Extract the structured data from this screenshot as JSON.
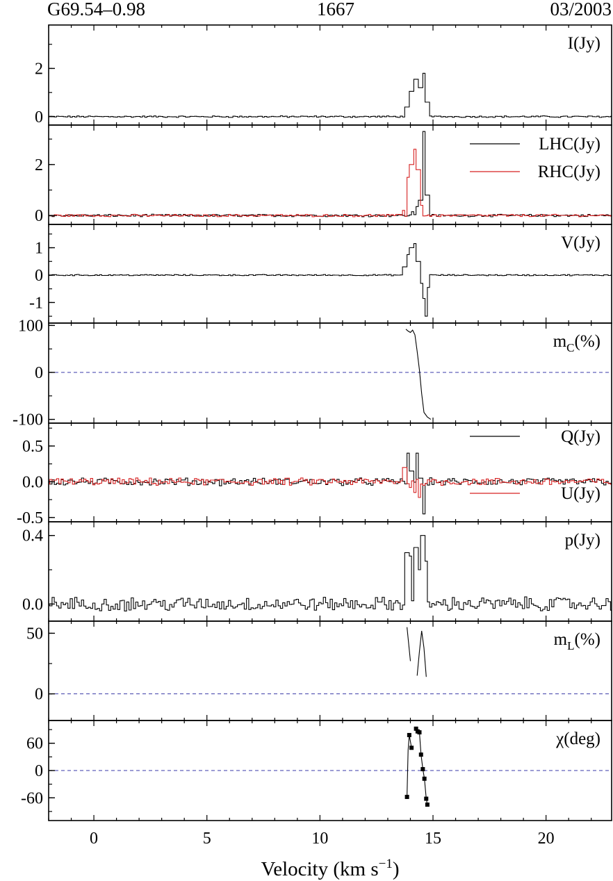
{
  "header": {
    "source": "G69.54–0.98",
    "frequency": "1667",
    "date": "03/2003"
  },
  "colors": {
    "primary_trace": "#000000",
    "secondary_trace": "#d62020",
    "zero_line": "#3a3aa8"
  },
  "chart_data": {
    "type": "line",
    "xlabel": "Velocity (km s",
    "xlabel_sup": "−1",
    "xlabel_close": ")",
    "xlim": [
      -2,
      22.9
    ],
    "xticks": [
      0,
      5,
      10,
      15,
      20
    ],
    "xtick_labels": [
      "0",
      "5",
      "10",
      "15",
      "20"
    ],
    "panels": [
      {
        "id": "I",
        "label": "I(Jy)",
        "ylim": [
          -0.35,
          3.8
        ],
        "yticks": [
          0,
          2
        ],
        "ytick_labels": [
          "0",
          "2"
        ],
        "noise": 0.03,
        "series": [
          {
            "name": "I(Jy)",
            "color": "#000000",
            "peaks": [
              [
                13.85,
                0.4
              ],
              [
                14.05,
                1.05
              ],
              [
                14.25,
                1.55
              ],
              [
                14.45,
                1.2
              ],
              [
                14.62,
                1.8
              ],
              [
                14.75,
                0.6
              ]
            ]
          }
        ]
      },
      {
        "id": "LR",
        "label": "",
        "ylim": [
          -0.35,
          3.55
        ],
        "yticks": [
          0,
          2
        ],
        "ytick_labels": [
          "0",
          "2"
        ],
        "noise": 0.04,
        "legend": [
          {
            "name": "LHC(Jy)",
            "color": "#000000"
          },
          {
            "name": "RHC(Jy)",
            "color": "#d62020"
          }
        ],
        "series": [
          {
            "name": "LHC(Jy)",
            "color": "#000000",
            "peaks": [
              [
                14.1,
                0.15
              ],
              [
                14.3,
                0.35
              ],
              [
                14.45,
                0.6
              ],
              [
                14.62,
                3.3
              ],
              [
                14.75,
                0.8
              ]
            ]
          },
          {
            "name": "RHC(Jy)",
            "color": "#d62020",
            "peaks": [
              [
                13.7,
                0.2
              ],
              [
                13.9,
                1.5
              ],
              [
                14.05,
                2.0
              ],
              [
                14.2,
                2.6
              ],
              [
                14.35,
                1.8
              ],
              [
                14.5,
                0.4
              ]
            ]
          }
        ]
      },
      {
        "id": "V",
        "label": "V(Jy)",
        "ylim": [
          -1.75,
          1.85
        ],
        "yticks": [
          -1,
          0,
          1
        ],
        "ytick_labels": [
          "-1",
          "0",
          "1"
        ],
        "noise": 0.02,
        "series": [
          {
            "name": "V(Jy)",
            "color": "#000000",
            "peaks": [
              [
                13.75,
                0.3
              ],
              [
                13.9,
                0.75
              ],
              [
                14.05,
                1.0
              ],
              [
                14.2,
                1.15
              ],
              [
                14.35,
                0.5
              ],
              [
                14.45,
                -0.3
              ],
              [
                14.55,
                -0.85
              ],
              [
                14.65,
                -1.5
              ],
              [
                14.78,
                -0.45
              ]
            ]
          }
        ]
      },
      {
        "id": "mc",
        "label": "m",
        "label_sub": "C",
        "label_tail": "(%)",
        "ylim": [
          -108,
          105
        ],
        "yticks": [
          -100,
          0,
          100
        ],
        "ytick_labels": [
          "-100",
          "0",
          "100"
        ],
        "zero_line": true,
        "curves": [
          {
            "color": "#000000",
            "points": [
              [
                13.8,
                92
              ],
              [
                13.9,
                88
              ],
              [
                14.0,
                85
              ],
              [
                14.1,
                90
              ],
              [
                14.2,
                80
              ],
              [
                14.3,
                45
              ],
              [
                14.4,
                5
              ],
              [
                14.5,
                -45
              ],
              [
                14.6,
                -85
              ],
              [
                14.75,
                -95
              ],
              [
                14.9,
                -100
              ]
            ]
          }
        ]
      },
      {
        "id": "QU",
        "label": "",
        "ylim": [
          -0.56,
          0.82
        ],
        "yticks": [
          -0.5,
          0.0,
          0.5
        ],
        "ytick_labels": [
          "-0.5",
          "0.0",
          "0.5"
        ],
        "noise": 0.045,
        "legend": [
          {
            "name": "Q(Jy)",
            "color": "#000000",
            "position": "top-right"
          },
          {
            "name": "U(Jy)",
            "color": "#d62020",
            "position": "bottom-right"
          }
        ],
        "series": [
          {
            "name": "Q(Jy)",
            "color": "#000000",
            "peaks": [
              [
                13.9,
                0.4
              ],
              [
                14.05,
                0.15
              ],
              [
                14.3,
                0.4
              ],
              [
                14.45,
                0.05
              ],
              [
                14.6,
                -0.45
              ]
            ]
          },
          {
            "name": "U(Jy)",
            "color": "#d62020",
            "peaks": [
              [
                13.75,
                0.2
              ],
              [
                14.0,
                -0.08
              ],
              [
                14.2,
                -0.15
              ],
              [
                14.4,
                -0.22
              ],
              [
                14.6,
                -0.05
              ]
            ]
          }
        ]
      },
      {
        "id": "p",
        "label": "p(Jy)",
        "ylim": [
          -0.1,
          0.48
        ],
        "yticks": [
          0.0,
          0.4
        ],
        "ytick_labels": [
          "0.0",
          "0.4"
        ],
        "noise": 0.035,
        "series": [
          {
            "name": "p(Jy)",
            "color": "#000000",
            "peaks": [
              [
                13.85,
                0.3
              ],
              [
                13.98,
                0.28
              ],
              [
                14.25,
                0.33
              ],
              [
                14.38,
                0.2
              ],
              [
                14.55,
                0.4
              ],
              [
                14.7,
                0.25
              ]
            ]
          }
        ]
      },
      {
        "id": "mL",
        "label": "m",
        "label_sub": "L",
        "label_tail": "(%)",
        "ylim": [
          -22,
          60
        ],
        "yticks": [
          0,
          50
        ],
        "ytick_labels": [
          "0",
          "50"
        ],
        "zero_line": true,
        "curves": [
          {
            "color": "#000000",
            "points": [
              [
                13.85,
                55
              ],
              [
                13.92,
                42
              ],
              [
                14.0,
                27
              ]
            ]
          },
          {
            "color": "#000000",
            "points": [
              [
                14.3,
                15
              ],
              [
                14.4,
                35
              ],
              [
                14.5,
                52
              ],
              [
                14.6,
                38
              ],
              [
                14.7,
                14
              ]
            ]
          }
        ]
      },
      {
        "id": "chi",
        "label": "χ(deg)",
        "ylim": [
          -110,
          110
        ],
        "yticks": [
          -60,
          0,
          60
        ],
        "ytick_labels": [
          "-60",
          "0",
          "60"
        ],
        "zero_line": true,
        "curves": [
          {
            "color": "#000000",
            "points": [
              [
                13.85,
                -58
              ],
              [
                13.9,
                45
              ],
              [
                13.95,
                78
              ],
              [
                14.05,
                50
              ]
            ]
          },
          {
            "color": "#000000",
            "points": [
              [
                14.25,
                92
              ],
              [
                14.32,
                86
              ],
              [
                14.4,
                84
              ],
              [
                14.47,
                35
              ],
              [
                14.55,
                3
              ],
              [
                14.62,
                -18
              ],
              [
                14.7,
                -62
              ],
              [
                14.75,
                -75
              ]
            ]
          }
        ],
        "markers": [
          [
            13.85,
            -58
          ],
          [
            13.95,
            78
          ],
          [
            14.05,
            50
          ],
          [
            14.25,
            92
          ],
          [
            14.32,
            86
          ],
          [
            14.4,
            84
          ],
          [
            14.47,
            35
          ],
          [
            14.55,
            3
          ],
          [
            14.62,
            -18
          ],
          [
            14.7,
            -62
          ],
          [
            14.75,
            -75
          ]
        ]
      }
    ]
  }
}
